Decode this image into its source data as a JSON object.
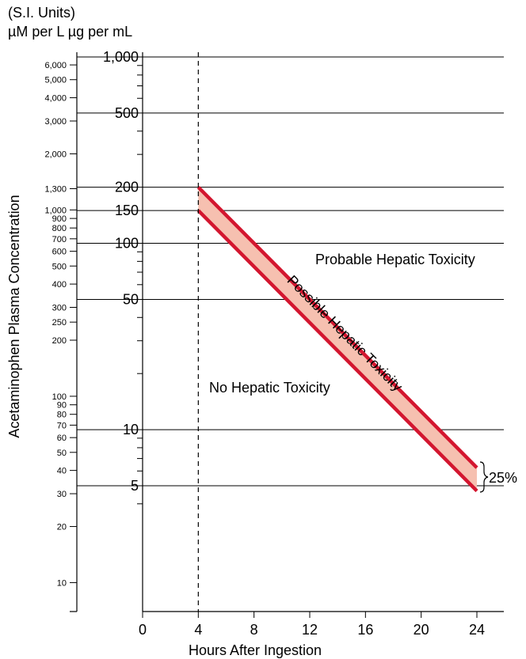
{
  "header": {
    "line1": "(S.I. Units)",
    "line2": "µM per L µg per mL"
  },
  "chart_data": {
    "type": "line",
    "title": "",
    "xlabel": "Hours After Ingestion",
    "ylabel": "Acetaminophen Plasma Concentration",
    "xlim": [
      0,
      24
    ],
    "x_ticks": [
      0,
      4,
      8,
      12,
      16,
      20,
      24
    ],
    "ylim": [
      3,
      1000
    ],
    "y_scale": "log",
    "y_ticks_ug_per_ml": [
      1000,
      500,
      200,
      150,
      100,
      50,
      10,
      5
    ],
    "y_ticks_umol_per_l": [
      {
        "label": "6,000",
        "value": 6000
      },
      {
        "label": "5,000",
        "value": 5000
      },
      {
        "label": "4,000",
        "value": 4000
      },
      {
        "label": "3,000",
        "value": 3000
      },
      {
        "label": "2,000",
        "value": 2000
      },
      {
        "label": "1,300",
        "value": 1300
      },
      {
        "label": "1,000",
        "value": 1000
      },
      {
        "label": "900",
        "value": 900
      },
      {
        "label": "800",
        "value": 800
      },
      {
        "label": "700",
        "value": 700
      },
      {
        "label": "600",
        "value": 600
      },
      {
        "label": "500",
        "value": 500
      },
      {
        "label": "400",
        "value": 400
      },
      {
        "label": "300",
        "value": 300
      },
      {
        "label": "250",
        "value": 250
      },
      {
        "label": "200",
        "value": 200
      },
      {
        "label": "100",
        "value": 100
      },
      {
        "label": "90",
        "value": 90
      },
      {
        "label": "80",
        "value": 80
      },
      {
        "label": "70",
        "value": 70
      },
      {
        "label": "60",
        "value": 60
      },
      {
        "label": "50",
        "value": 50
      },
      {
        "label": "40",
        "value": 40
      },
      {
        "label": "30",
        "value": 30
      },
      {
        "label": "20",
        "value": 20
      },
      {
        "label": "10",
        "value": 10
      }
    ],
    "minor_ticks_ug_per_ml": [
      900,
      800,
      700,
      600,
      400,
      300,
      90,
      80,
      70,
      60,
      40,
      30,
      20,
      9,
      8,
      7,
      6,
      4
    ],
    "vertical_reference": {
      "x": 4,
      "style": "dashed"
    },
    "series": [
      {
        "x": [
          4,
          24
        ],
        "y": [
          200,
          6.25
        ]
      },
      {
        "x": [
          4,
          24
        ],
        "y": [
          150,
          4.69
        ]
      }
    ],
    "band_label": "Possible Hepatic Toxicity",
    "band_label_upper_line": 25,
    "annotations": {
      "upper_region": "Probable Hepatic Toxicity",
      "lower_region": "No Hepatic Toxicity",
      "bracket": "25%"
    },
    "colors": {
      "band_fill": "#f6c0b0",
      "band_line": "#d3162f"
    }
  }
}
